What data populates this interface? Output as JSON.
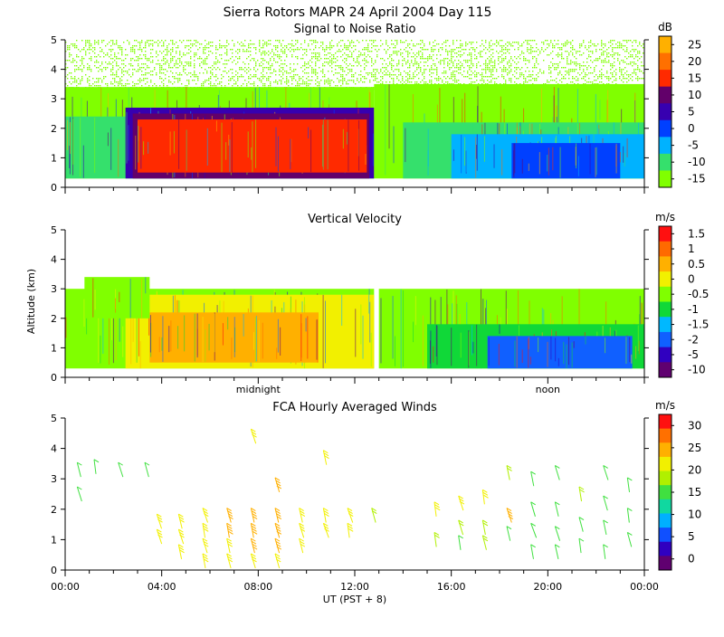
{
  "figure": {
    "title": "Sierra Rotors  MAPR 24 April 2004 Day 115",
    "xlabel": "UT  (PST + 8)",
    "ylabel": "Altitude (km)",
    "x_ticks": [
      "00:00",
      "04:00",
      "08:00",
      "12:00",
      "16:00",
      "20:00",
      "00:00"
    ],
    "time_marks": [
      "midnight",
      "noon"
    ]
  },
  "chart_data": [
    {
      "type": "heatmap",
      "id": "snr",
      "title": "Signal to Noise Ratio",
      "units": "dB",
      "xlim": [
        0,
        24
      ],
      "ylim": [
        0,
        5
      ],
      "y_ticks": [
        "0",
        "1",
        "2",
        "3",
        "4",
        "5"
      ],
      "colorbar_labels": [
        "25",
        "20",
        "15",
        "10",
        "5",
        "0",
        "-5",
        "-10",
        "-15"
      ],
      "colorbar_colors": [
        "#ffb000",
        "#ff7000",
        "#ff2a00",
        "#62006a",
        "#3700b0",
        "#0040ff",
        "#00b2ff",
        "#35e06c",
        "#80ff00"
      ],
      "regions": [
        {
          "t0": 0.0,
          "t1": 24.0,
          "z0": 3.3,
          "z1": 5.0,
          "value": -15,
          "sparse": true
        },
        {
          "t0": 0.0,
          "t1": 12.8,
          "z0": 0.3,
          "z1": 3.4,
          "value": -15
        },
        {
          "t0": 0.0,
          "t1": 12.8,
          "z0": 0.3,
          "z1": 2.4,
          "value": -10
        },
        {
          "t0": 2.5,
          "t1": 12.8,
          "z0": 0.3,
          "z1": 2.7,
          "value": 5
        },
        {
          "t0": 2.8,
          "t1": 12.6,
          "z0": 0.3,
          "z1": 2.5,
          "value": 10
        },
        {
          "t0": 3.0,
          "t1": 12.5,
          "z0": 0.5,
          "z1": 2.3,
          "value": 15
        },
        {
          "t0": 12.8,
          "t1": 24.0,
          "z0": 0.3,
          "z1": 3.5,
          "value": -15
        },
        {
          "t0": 14.0,
          "t1": 24.0,
          "z0": 0.3,
          "z1": 2.2,
          "value": -10
        },
        {
          "t0": 16.0,
          "t1": 24.0,
          "z0": 0.3,
          "z1": 1.8,
          "value": -5
        },
        {
          "t0": 18.5,
          "t1": 23.0,
          "z0": 0.3,
          "z1": 1.5,
          "value": 0
        }
      ]
    },
    {
      "type": "heatmap",
      "id": "vertical-velocity",
      "title": "Vertical Velocity",
      "units": "m/s",
      "xlim": [
        0,
        24
      ],
      "ylim": [
        0,
        5
      ],
      "y_ticks": [
        "0",
        "1",
        "2",
        "3",
        "4",
        "5"
      ],
      "colorbar_labels": [
        "1.5",
        "1",
        "0.5",
        "0",
        "-0.5",
        "-1",
        "-1.5",
        "-2",
        "-5",
        "-10"
      ],
      "colorbar_colors": [
        "#ff1010",
        "#ff6a00",
        "#ffb000",
        "#f2f000",
        "#80ff00",
        "#10d838",
        "#00b8ff",
        "#1060ff",
        "#3000c0",
        "#600070"
      ],
      "regions": [
        {
          "t0": 0.0,
          "t1": 12.8,
          "z0": 0.3,
          "z1": 3.0,
          "value": -0.5
        },
        {
          "t0": 2.5,
          "t1": 12.8,
          "z0": 0.3,
          "z1": 2.8,
          "value": 0
        },
        {
          "t0": 3.5,
          "t1": 10.5,
          "z0": 0.5,
          "z1": 2.2,
          "value": 0.5
        },
        {
          "t0": 0.8,
          "t1": 3.5,
          "z0": 2.0,
          "z1": 3.4,
          "value": -0.5
        },
        {
          "t0": 13.0,
          "t1": 24.0,
          "z0": 0.3,
          "z1": 3.0,
          "value": -0.5
        },
        {
          "t0": 15.0,
          "t1": 24.0,
          "z0": 0.3,
          "z1": 1.8,
          "value": -1
        },
        {
          "t0": 17.5,
          "t1": 23.5,
          "z0": 0.3,
          "z1": 1.4,
          "value": -2
        }
      ]
    },
    {
      "type": "scatter",
      "subtype": "wind-barbs",
      "id": "fca-winds",
      "title": "FCA Hourly Averaged Winds",
      "units": "m/s",
      "xlim": [
        0,
        24
      ],
      "ylim": [
        0,
        5
      ],
      "y_ticks": [
        "0",
        "1",
        "2",
        "3",
        "4",
        "5"
      ],
      "colorbar_labels": [
        "30",
        "25",
        "20",
        "15",
        "10",
        "5",
        "0"
      ],
      "colorbar_colors": [
        "#ff1010",
        "#ff7000",
        "#ffb000",
        "#f2f000",
        "#b0f000",
        "#40e040",
        "#10d8a0",
        "#00b0ff",
        "#1050ff",
        "#3000c0",
        "#600070"
      ],
      "barbs": [
        {
          "t": 0.5,
          "z": 3.3,
          "speed": 6
        },
        {
          "t": 0.5,
          "z": 2.5,
          "speed": 4
        },
        {
          "t": 1.2,
          "z": 3.4,
          "speed": 5
        },
        {
          "t": 2.2,
          "z": 3.3,
          "speed": 5
        },
        {
          "t": 3.3,
          "z": 3.3,
          "speed": 5
        },
        {
          "t": 3.8,
          "z": 1.6,
          "speed": 14
        },
        {
          "t": 3.8,
          "z": 1.1,
          "speed": 14
        },
        {
          "t": 4.7,
          "z": 1.6,
          "speed": 15
        },
        {
          "t": 4.7,
          "z": 1.1,
          "speed": 15
        },
        {
          "t": 4.7,
          "z": 0.6,
          "speed": 15
        },
        {
          "t": 5.7,
          "z": 1.8,
          "speed": 17
        },
        {
          "t": 5.7,
          "z": 1.3,
          "speed": 17
        },
        {
          "t": 5.7,
          "z": 0.8,
          "speed": 17
        },
        {
          "t": 5.7,
          "z": 0.3,
          "speed": 17
        },
        {
          "t": 6.7,
          "z": 1.8,
          "speed": 18
        },
        {
          "t": 6.7,
          "z": 1.3,
          "speed": 18
        },
        {
          "t": 6.7,
          "z": 0.8,
          "speed": 17
        },
        {
          "t": 6.7,
          "z": 0.3,
          "speed": 17
        },
        {
          "t": 7.7,
          "z": 4.4,
          "speed": 14
        },
        {
          "t": 7.7,
          "z": 1.8,
          "speed": 18
        },
        {
          "t": 7.7,
          "z": 1.3,
          "speed": 18
        },
        {
          "t": 7.7,
          "z": 0.8,
          "speed": 18
        },
        {
          "t": 7.7,
          "z": 0.3,
          "speed": 17
        },
        {
          "t": 8.7,
          "z": 2.8,
          "speed": 20
        },
        {
          "t": 8.7,
          "z": 1.8,
          "speed": 19
        },
        {
          "t": 8.7,
          "z": 1.3,
          "speed": 18
        },
        {
          "t": 8.7,
          "z": 0.8,
          "speed": 18
        },
        {
          "t": 8.7,
          "z": 0.3,
          "speed": 17
        },
        {
          "t": 9.7,
          "z": 1.8,
          "speed": 16
        },
        {
          "t": 9.7,
          "z": 1.3,
          "speed": 16
        },
        {
          "t": 9.7,
          "z": 0.8,
          "speed": 15
        },
        {
          "t": 10.7,
          "z": 3.7,
          "speed": 13
        },
        {
          "t": 10.7,
          "z": 1.8,
          "speed": 14
        },
        {
          "t": 10.7,
          "z": 1.3,
          "speed": 14
        },
        {
          "t": 11.7,
          "z": 1.8,
          "speed": 13
        },
        {
          "t": 11.7,
          "z": 1.3,
          "speed": 13
        },
        {
          "t": 12.7,
          "z": 1.8,
          "speed": 12
        },
        {
          "t": 15.3,
          "z": 2.0,
          "speed": 16
        },
        {
          "t": 15.3,
          "z": 1.0,
          "speed": 8
        },
        {
          "t": 16.3,
          "z": 2.2,
          "speed": 16
        },
        {
          "t": 16.3,
          "z": 1.4,
          "speed": 8
        },
        {
          "t": 16.3,
          "z": 0.9,
          "speed": 7
        },
        {
          "t": 17.3,
          "z": 2.4,
          "speed": 14
        },
        {
          "t": 17.3,
          "z": 1.4,
          "speed": 10
        },
        {
          "t": 17.3,
          "z": 0.9,
          "speed": 8
        },
        {
          "t": 18.3,
          "z": 3.2,
          "speed": 12
        },
        {
          "t": 18.3,
          "z": 1.8,
          "speed": 20
        },
        {
          "t": 18.3,
          "z": 1.2,
          "speed": 5
        },
        {
          "t": 19.3,
          "z": 3.0,
          "speed": 5
        },
        {
          "t": 19.3,
          "z": 2.0,
          "speed": 4
        },
        {
          "t": 19.3,
          "z": 1.3,
          "speed": 4
        },
        {
          "t": 19.3,
          "z": 0.6,
          "speed": 4
        },
        {
          "t": 20.3,
          "z": 3.2,
          "speed": 4
        },
        {
          "t": 20.3,
          "z": 2.0,
          "speed": 3
        },
        {
          "t": 20.3,
          "z": 1.2,
          "speed": 3
        },
        {
          "t": 20.3,
          "z": 0.6,
          "speed": 4
        },
        {
          "t": 21.3,
          "z": 2.5,
          "speed": 10
        },
        {
          "t": 21.3,
          "z": 1.5,
          "speed": 4
        },
        {
          "t": 21.3,
          "z": 0.8,
          "speed": 3
        },
        {
          "t": 22.3,
          "z": 3.2,
          "speed": 4
        },
        {
          "t": 22.3,
          "z": 2.2,
          "speed": 4
        },
        {
          "t": 22.3,
          "z": 1.4,
          "speed": 4
        },
        {
          "t": 22.3,
          "z": 0.6,
          "speed": 3
        },
        {
          "t": 23.3,
          "z": 2.8,
          "speed": 4
        },
        {
          "t": 23.3,
          "z": 1.8,
          "speed": 3
        },
        {
          "t": 23.3,
          "z": 1.0,
          "speed": 4
        }
      ]
    }
  ]
}
